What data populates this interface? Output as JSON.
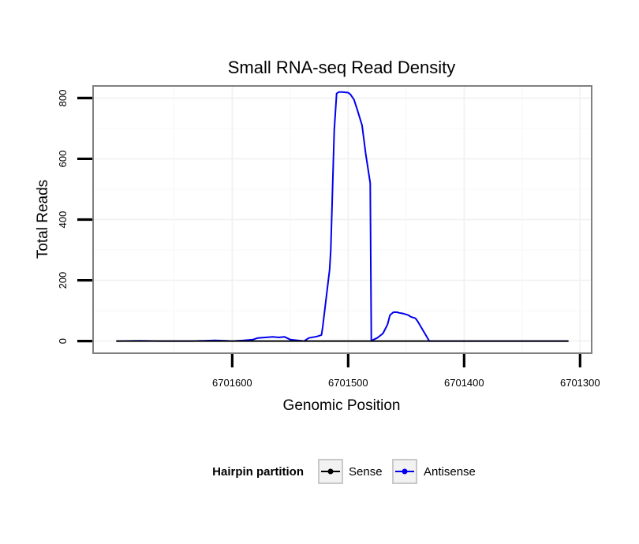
{
  "chart_data": {
    "type": "line",
    "title": "Small RNA-seq Read Density",
    "xlabel": "Genomic Position",
    "ylabel": "Total Reads",
    "x_reversed": true,
    "xlim": [
      6701720,
      6701290
    ],
    "ylim": [
      -40,
      840
    ],
    "x_ticks": [
      6701600,
      6701500,
      6701400,
      6701300
    ],
    "x_tick_labels": [
      "6701600",
      "6701500",
      "6701400",
      "6701300"
    ],
    "y_ticks": [
      0,
      200,
      400,
      600,
      800
    ],
    "y_tick_labels": [
      "0",
      "200",
      "400",
      "600",
      "800"
    ],
    "grid": true,
    "legend": {
      "title": "Hairpin partition",
      "position": "bottom",
      "entries": [
        {
          "name": "Sense",
          "color": "#000000"
        },
        {
          "name": "Antisense",
          "color": "#0000ee"
        }
      ]
    },
    "series": [
      {
        "name": "Sense",
        "color": "#000000",
        "x": [
          6701700,
          6701310
        ],
        "y": [
          0,
          0
        ]
      },
      {
        "name": "Antisense",
        "color": "#0000ee",
        "x": [
          6701700,
          6701680,
          6701660,
          6701635,
          6701625,
          6701615,
          6701605,
          6701600,
          6701590,
          6701582,
          6701578,
          6701565,
          6701560,
          6701555,
          6701550,
          6701538,
          6701536,
          6701534,
          6701527,
          6701523,
          6701522,
          6701516,
          6701515,
          6701512,
          6701510,
          6701508,
          6701505,
          6701500,
          6701498,
          6701495,
          6701492,
          6701488,
          6701485,
          6701481,
          6701480,
          6701478,
          6701475,
          6701470,
          6701466,
          6701464,
          6701461,
          6701458,
          6701456,
          6701452,
          6701448,
          6701446,
          6701442,
          6701440,
          6701430,
          6701310
        ],
        "y": [
          0,
          1,
          0,
          0,
          1,
          2,
          1,
          0,
          2,
          5,
          10,
          14,
          12,
          14,
          5,
          0,
          5,
          10,
          15,
          20,
          45,
          235,
          300,
          695,
          815,
          820,
          820,
          818,
          812,
          795,
          760,
          710,
          620,
          520,
          0,
          5,
          10,
          25,
          55,
          85,
          95,
          95,
          93,
          90,
          85,
          80,
          75,
          65,
          0,
          0
        ]
      }
    ]
  }
}
